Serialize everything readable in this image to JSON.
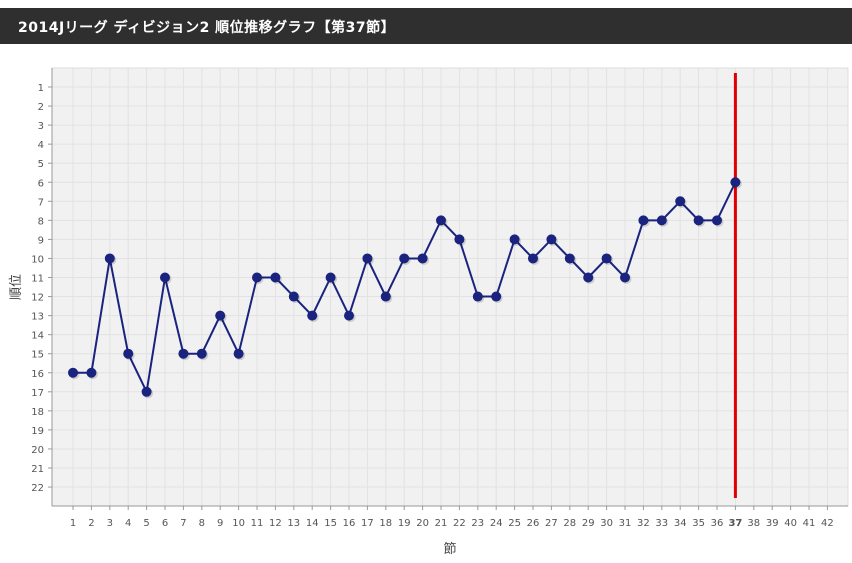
{
  "header": {
    "title": "2014Jリーグ ディビジョン2 順位推移グラフ【第37節】"
  },
  "chart_data": {
    "type": "line",
    "title": "2014Jリーグ ディビジョン2 順位推移グラフ【第37節】",
    "xlabel": "節",
    "ylabel": "順位",
    "x": [
      1,
      2,
      3,
      4,
      5,
      6,
      7,
      8,
      9,
      10,
      11,
      12,
      13,
      14,
      15,
      16,
      17,
      18,
      19,
      20,
      21,
      22,
      23,
      24,
      25,
      26,
      27,
      28,
      29,
      30,
      31,
      32,
      33,
      34,
      35,
      36,
      37
    ],
    "categories": [
      "1",
      "2",
      "3",
      "4",
      "5",
      "6",
      "7",
      "8",
      "9",
      "10",
      "11",
      "12",
      "13",
      "14",
      "15",
      "16",
      "17",
      "18",
      "19",
      "20",
      "21",
      "22",
      "23",
      "24",
      "25",
      "26",
      "27",
      "28",
      "29",
      "30",
      "31",
      "32",
      "33",
      "34",
      "35",
      "36",
      "37",
      "38",
      "39",
      "40",
      "41",
      "42"
    ],
    "y_ticks": [
      "1",
      "2",
      "3",
      "4",
      "5",
      "6",
      "7",
      "8",
      "9",
      "10",
      "11",
      "12",
      "13",
      "14",
      "15",
      "16",
      "17",
      "18",
      "19",
      "20",
      "21",
      "22"
    ],
    "series": [
      {
        "values": [
          16,
          16,
          10,
          15,
          17,
          11,
          15,
          15,
          13,
          15,
          11,
          11,
          12,
          13,
          11,
          13,
          10,
          12,
          10,
          10,
          8,
          9,
          12,
          12,
          9,
          10,
          9,
          10,
          11,
          10,
          11,
          8,
          8,
          7,
          8,
          8,
          6
        ]
      }
    ],
    "xlim": [
      1,
      42
    ],
    "ylim": [
      1,
      22
    ],
    "y_inverted": true,
    "grid": true,
    "current_round": 37,
    "colors": {
      "line": "#1a237e",
      "marker": "#1a237e",
      "current_marker_line": "#e00000",
      "current_label": "#e00000",
      "plot_bg": "#f1f1f1",
      "grid": "#e2e2e2"
    }
  }
}
